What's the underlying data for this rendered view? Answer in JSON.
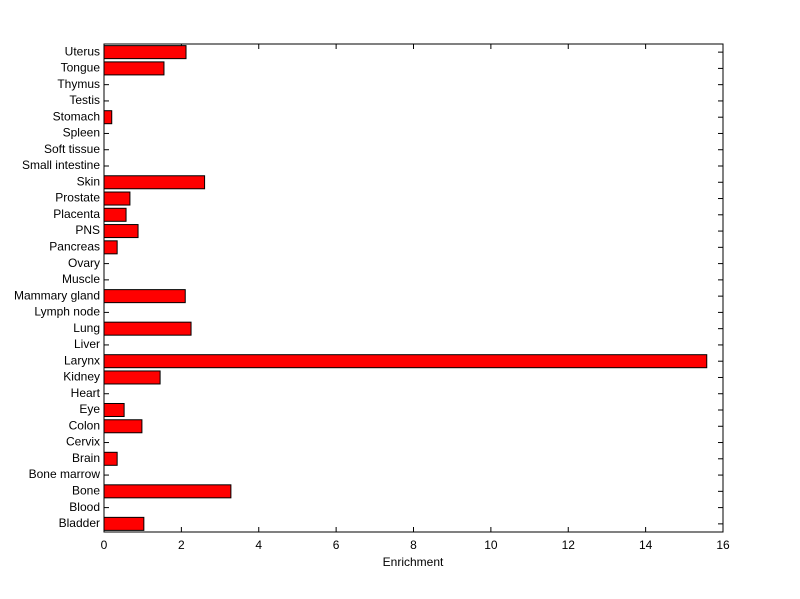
{
  "chart_data": {
    "type": "barh",
    "x_label": "Enrichment",
    "categories": [
      "Bladder",
      "Blood",
      "Bone",
      "Bone marrow",
      "Brain",
      "Cervix",
      "Colon",
      "Eye",
      "Heart",
      "Kidney",
      "Larynx",
      "Liver",
      "Lung",
      "Lymph node",
      "Mammary gland",
      "Muscle",
      "Ovary",
      "Pancreas",
      "PNS",
      "Placenta",
      "Prostate",
      "Skin",
      "Small intestine",
      "Soft tissue",
      "Spleen",
      "Stomach",
      "Testis",
      "Thymus",
      "Tongue",
      "Uterus"
    ],
    "values": [
      1.03,
      0,
      3.28,
      0,
      0.34,
      0,
      0.98,
      0.52,
      0,
      1.45,
      15.58,
      0,
      2.25,
      0,
      2.1,
      0,
      0,
      0.34,
      0.88,
      0.57,
      0.67,
      2.6,
      0,
      0,
      0,
      0.2,
      0,
      0,
      1.55,
      2.12
    ],
    "color": "#ff0000",
    "xlim": [
      0,
      16
    ],
    "xticks": [
      0,
      2,
      4,
      6,
      8,
      10,
      12,
      14,
      16
    ]
  }
}
